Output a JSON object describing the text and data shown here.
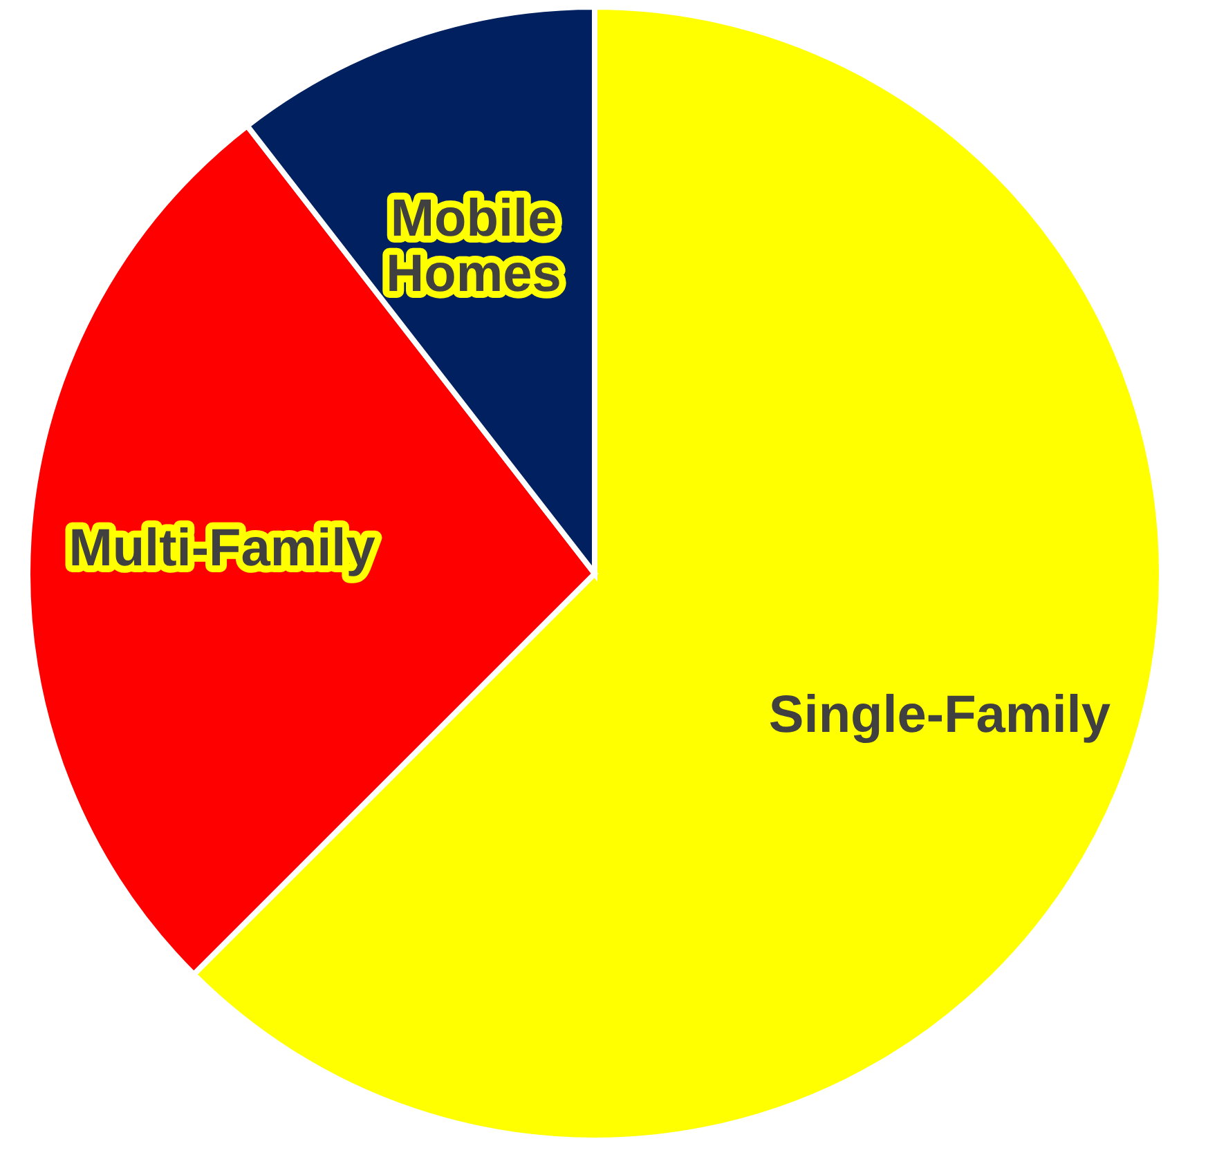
{
  "chart_data": {
    "type": "pie",
    "categories": [
      "Single-Family",
      "Multi-Family",
      "Mobile Homes"
    ],
    "values": [
      62.5,
      27,
      10.5
    ],
    "colors": [
      "#ffff00",
      "#ff0000",
      "#002060"
    ],
    "legend": false
  }
}
